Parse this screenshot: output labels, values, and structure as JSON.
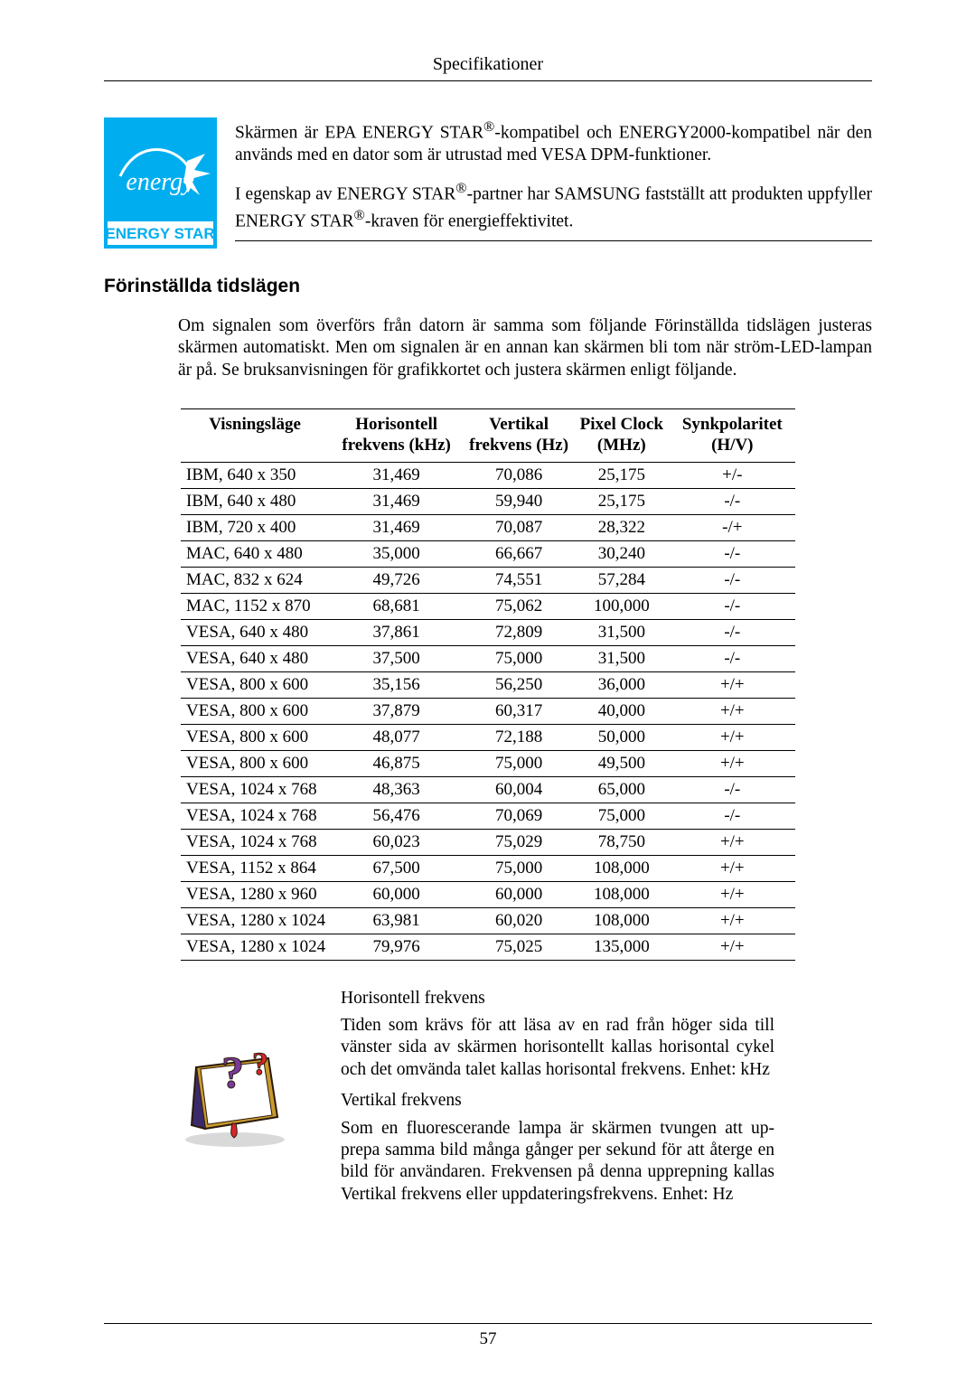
{
  "header": {
    "title": "Specifikationer"
  },
  "energy": {
    "logo": {
      "bg": "#00aeef",
      "script_text": "energy",
      "band_bg": "#ffffff",
      "band_text": "ENERGY STAR",
      "band_text_color": "#00aeef"
    },
    "para1_a": "Skärmen är EPA ENERGY STAR",
    "para1_b": "-kompatibel och ENER­GY2000-kompatibel när den används med en dator som är utrustad med VESA DPM-funktioner.",
    "para2_a": "I egenskap av ENERGY STAR",
    "para2_b": "-partner har SAMSUNG fast­ställt att produkten uppfyller ENERGY STAR",
    "para2_c": "-kraven för energieffektivitet.",
    "reg": "®"
  },
  "section_heading": "Förinställda tidslägen",
  "intro": "Om signalen som överförs från datorn är samma som följande Förinställda tidslägen justeras skärmen automatiskt. Men om signalen är en annan kan skärmen bli tom när ström-LED-lampan är på. Se bruksanvisningen för grafikkortet och justera skärmen enligt följande.",
  "table": {
    "headers": {
      "c1": "Visningsläge",
      "c2": "Horisontell frekvens (kHz)",
      "c3": "Vertikal frekvens (Hz)",
      "c4": "Pixel Clock (MHz)",
      "c5": "Synkpolaritet (H/V)"
    },
    "rows": [
      {
        "mode": "IBM, 640 x 350",
        "h": "31,469",
        "v": "70,086",
        "p": "25,175",
        "s": "+/-"
      },
      {
        "mode": "IBM, 640 x 480",
        "h": "31,469",
        "v": "59,940",
        "p": "25,175",
        "s": "-/-"
      },
      {
        "mode": "IBM, 720 x 400",
        "h": "31,469",
        "v": "70,087",
        "p": "28,322",
        "s": "-/+"
      },
      {
        "mode": "MAC, 640 x 480",
        "h": "35,000",
        "v": "66,667",
        "p": "30,240",
        "s": "-/-"
      },
      {
        "mode": "MAC, 832 x 624",
        "h": "49,726",
        "v": "74,551",
        "p": "57,284",
        "s": "-/-"
      },
      {
        "mode": "MAC, 1152 x 870",
        "h": "68,681",
        "v": "75,062",
        "p": "100,000",
        "s": "-/-"
      },
      {
        "mode": "VESA, 640 x 480",
        "h": "37,861",
        "v": "72,809",
        "p": "31,500",
        "s": "-/-"
      },
      {
        "mode": "VESA, 640 x 480",
        "h": "37,500",
        "v": "75,000",
        "p": "31,500",
        "s": "-/-"
      },
      {
        "mode": "VESA, 800 x 600",
        "h": "35,156",
        "v": "56,250",
        "p": "36,000",
        "s": "+/+"
      },
      {
        "mode": "VESA, 800 x 600",
        "h": "37,879",
        "v": "60,317",
        "p": "40,000",
        "s": "+/+"
      },
      {
        "mode": "VESA, 800 x 600",
        "h": "48,077",
        "v": "72,188",
        "p": "50,000",
        "s": "+/+"
      },
      {
        "mode": "VESA, 800 x 600",
        "h": "46,875",
        "v": "75,000",
        "p": "49,500",
        "s": "+/+"
      },
      {
        "mode": "VESA, 1024 x 768",
        "h": "48,363",
        "v": "60,004",
        "p": "65,000",
        "s": "-/-"
      },
      {
        "mode": "VESA, 1024 x 768",
        "h": "56,476",
        "v": "70,069",
        "p": "75,000",
        "s": "-/-"
      },
      {
        "mode": "VESA, 1024 x 768",
        "h": "60,023",
        "v": "75,029",
        "p": "78,750",
        "s": "+/+"
      },
      {
        "mode": "VESA, 1152 x 864",
        "h": "67,500",
        "v": "75,000",
        "p": "108,000",
        "s": "+/+"
      },
      {
        "mode": "VESA, 1280 x 960",
        "h": "60,000",
        "v": "60,000",
        "p": "108,000",
        "s": "+/+"
      },
      {
        "mode": "VESA, 1280 x 1024",
        "h": "63,981",
        "v": "60,020",
        "p": "108,000",
        "s": "+/+"
      },
      {
        "mode": "VESA, 1280 x 1024",
        "h": "79,976",
        "v": "75,025",
        "p": "135,000",
        "s": "+/+"
      }
    ]
  },
  "freq": {
    "h_title": "Horisontell frekvens",
    "h_body": "Tiden som krävs för att läsa av en rad från höger sida till vänster sida av skärmen horisontellt kallas horisontal cy­kel och det omvända talet kallas horisontal frekvens. En­het: kHz",
    "v_title": "Vertikal frekvens",
    "v_body": "Som en fluorescerande lampa är skärmen tvungen att up­prepa samma bild många gånger per sekund för att återge en bild för användaren. Frekvensen på denna upprepning kallas Vertikal frekvens eller uppdateringsfrekvens. En­het: Hz",
    "icon_colors": {
      "book_front": "#c99a2e",
      "book_pages": "#ffffff",
      "book_spine": "#3b2a6b",
      "ribbon": "#d9262c",
      "qmark": "#7a3a9b",
      "outline": "#2a1a0a"
    }
  },
  "footer": {
    "page": "57"
  }
}
